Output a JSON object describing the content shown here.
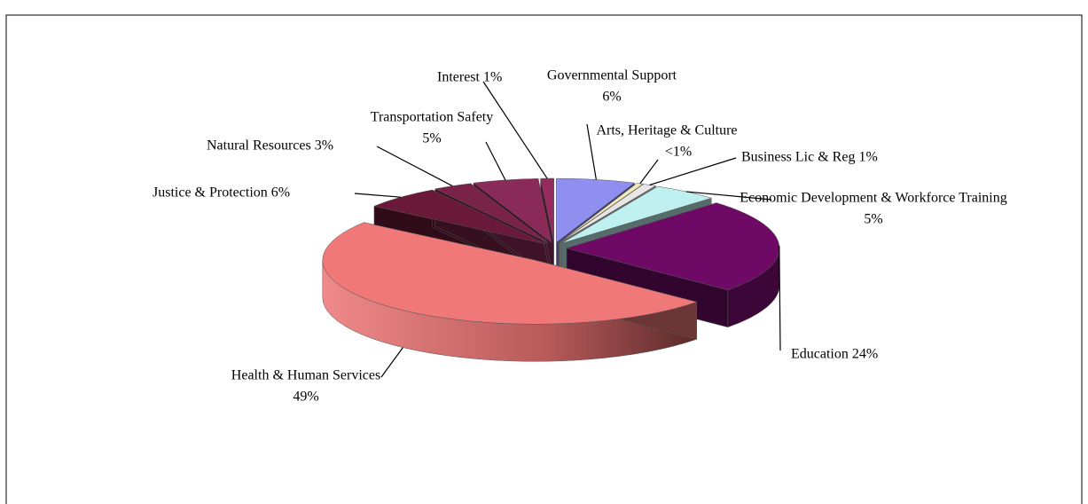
{
  "chart_data": {
    "type": "pie3d",
    "categories": [
      "Governmental Support",
      "Arts, Heritage & Culture",
      "Business Lic & Reg",
      "Economic Development & Workforce Training",
      "Education",
      "Health & Human Services",
      "Justice & Protection",
      "Natural Resources",
      "Transportation Safety",
      "Interest"
    ],
    "values": [
      6,
      0.5,
      1,
      5,
      24,
      49,
      6,
      3,
      5,
      1
    ],
    "value_labels": [
      "6%",
      "<1%",
      "1%",
      "5%",
      "24%",
      "49%",
      "6%",
      "3%",
      "5%",
      "1%"
    ],
    "colors": [
      "#8f8ff0",
      "#f2e8b8",
      "#e6e6e6",
      "#bff0f0",
      "#6e0a66",
      "#f07878",
      "#6a1a38",
      "#7a2348",
      "#8a2a58",
      "#952a5e"
    ]
  }
}
